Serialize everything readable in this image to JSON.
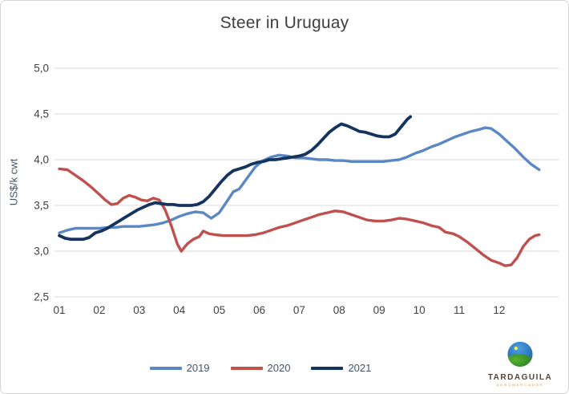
{
  "title": "Steer in Uruguay",
  "y_axis": {
    "label": "US$/k cwt",
    "ticks": [
      {
        "label": "5,0",
        "value": 5.0
      },
      {
        "label": "4,5",
        "value": 4.5
      },
      {
        "label": "4,0",
        "value": 4.0
      },
      {
        "label": "3,5",
        "value": 3.5
      },
      {
        "label": "3,0",
        "value": 3.0
      },
      {
        "label": "2,5",
        "value": 2.5
      }
    ]
  },
  "x_axis": {
    "ticks": [
      "01",
      "02",
      "03",
      "04",
      "05",
      "06",
      "07",
      "08",
      "09",
      "10",
      "11",
      "12"
    ]
  },
  "colors": {
    "grid": "#d9d9d9",
    "tick_text": "#404040",
    "title_text": "#3f3f3f",
    "series_2019": "#5b87c5",
    "series_2020": "#c0504d",
    "series_2021": "#15335f"
  },
  "legend": [
    {
      "label": "2019",
      "color": "#5b87c5"
    },
    {
      "label": "2020",
      "color": "#c0504d"
    },
    {
      "label": "2021",
      "color": "#15335f"
    }
  ],
  "logo": {
    "name": "TARDAGUILA",
    "subtext": "AGROMERCADOS"
  },
  "chart_data": {
    "type": "line",
    "title": "Steer in Uruguay",
    "xlabel": "",
    "ylabel": "US$/k cwt",
    "ylim": [
      2.5,
      5.0
    ],
    "xlim_months": [
      1,
      13
    ],
    "grid": "horizontal",
    "legend_position": "bottom",
    "x_unit": "month (01-12), weekly resolution points",
    "series": [
      {
        "name": "2019",
        "color": "#5b87c5",
        "points": [
          [
            1.0,
            3.2
          ],
          [
            1.2,
            3.23
          ],
          [
            1.4,
            3.25
          ],
          [
            1.6,
            3.25
          ],
          [
            1.8,
            3.25
          ],
          [
            2.0,
            3.25
          ],
          [
            2.2,
            3.26
          ],
          [
            2.4,
            3.26
          ],
          [
            2.6,
            3.27
          ],
          [
            2.8,
            3.27
          ],
          [
            3.0,
            3.27
          ],
          [
            3.2,
            3.28
          ],
          [
            3.4,
            3.29
          ],
          [
            3.6,
            3.31
          ],
          [
            3.8,
            3.34
          ],
          [
            4.0,
            3.38
          ],
          [
            4.2,
            3.41
          ],
          [
            4.4,
            3.43
          ],
          [
            4.6,
            3.42
          ],
          [
            4.8,
            3.36
          ],
          [
            5.0,
            3.42
          ],
          [
            5.2,
            3.55
          ],
          [
            5.35,
            3.65
          ],
          [
            5.5,
            3.68
          ],
          [
            5.7,
            3.8
          ],
          [
            5.9,
            3.92
          ],
          [
            6.1,
            3.99
          ],
          [
            6.3,
            4.03
          ],
          [
            6.5,
            4.05
          ],
          [
            6.7,
            4.04
          ],
          [
            6.9,
            4.02
          ],
          [
            7.1,
            4.02
          ],
          [
            7.3,
            4.01
          ],
          [
            7.5,
            4.0
          ],
          [
            7.7,
            4.0
          ],
          [
            7.9,
            3.99
          ],
          [
            8.1,
            3.99
          ],
          [
            8.3,
            3.98
          ],
          [
            8.5,
            3.98
          ],
          [
            8.7,
            3.98
          ],
          [
            8.9,
            3.98
          ],
          [
            9.1,
            3.98
          ],
          [
            9.3,
            3.99
          ],
          [
            9.5,
            4.0
          ],
          [
            9.7,
            4.03
          ],
          [
            9.9,
            4.07
          ],
          [
            10.1,
            4.1
          ],
          [
            10.3,
            4.14
          ],
          [
            10.5,
            4.17
          ],
          [
            10.7,
            4.21
          ],
          [
            10.9,
            4.25
          ],
          [
            11.1,
            4.28
          ],
          [
            11.3,
            4.31
          ],
          [
            11.5,
            4.33
          ],
          [
            11.65,
            4.35
          ],
          [
            11.8,
            4.34
          ],
          [
            12.0,
            4.28
          ],
          [
            12.2,
            4.2
          ],
          [
            12.4,
            4.12
          ],
          [
            12.6,
            4.03
          ],
          [
            12.8,
            3.95
          ],
          [
            13.0,
            3.89
          ]
        ]
      },
      {
        "name": "2020",
        "color": "#c0504d",
        "points": [
          [
            1.0,
            3.9
          ],
          [
            1.2,
            3.89
          ],
          [
            1.4,
            3.83
          ],
          [
            1.6,
            3.77
          ],
          [
            1.8,
            3.7
          ],
          [
            2.0,
            3.62
          ],
          [
            2.15,
            3.56
          ],
          [
            2.3,
            3.51
          ],
          [
            2.45,
            3.52
          ],
          [
            2.6,
            3.58
          ],
          [
            2.75,
            3.61
          ],
          [
            2.9,
            3.59
          ],
          [
            3.05,
            3.56
          ],
          [
            3.2,
            3.55
          ],
          [
            3.35,
            3.58
          ],
          [
            3.5,
            3.56
          ],
          [
            3.65,
            3.45
          ],
          [
            3.8,
            3.28
          ],
          [
            3.95,
            3.08
          ],
          [
            4.05,
            3.0
          ],
          [
            4.2,
            3.08
          ],
          [
            4.35,
            3.13
          ],
          [
            4.5,
            3.16
          ],
          [
            4.6,
            3.22
          ],
          [
            4.75,
            3.19
          ],
          [
            4.9,
            3.18
          ],
          [
            5.1,
            3.17
          ],
          [
            5.3,
            3.17
          ],
          [
            5.5,
            3.17
          ],
          [
            5.7,
            3.17
          ],
          [
            5.9,
            3.18
          ],
          [
            6.1,
            3.2
          ],
          [
            6.3,
            3.23
          ],
          [
            6.5,
            3.26
          ],
          [
            6.7,
            3.28
          ],
          [
            6.9,
            3.31
          ],
          [
            7.1,
            3.34
          ],
          [
            7.3,
            3.37
          ],
          [
            7.5,
            3.4
          ],
          [
            7.7,
            3.42
          ],
          [
            7.9,
            3.44
          ],
          [
            8.1,
            3.43
          ],
          [
            8.3,
            3.4
          ],
          [
            8.5,
            3.37
          ],
          [
            8.7,
            3.34
          ],
          [
            8.9,
            3.33
          ],
          [
            9.1,
            3.33
          ],
          [
            9.3,
            3.34
          ],
          [
            9.5,
            3.36
          ],
          [
            9.7,
            3.35
          ],
          [
            9.9,
            3.33
          ],
          [
            10.1,
            3.31
          ],
          [
            10.3,
            3.28
          ],
          [
            10.5,
            3.26
          ],
          [
            10.65,
            3.21
          ],
          [
            10.85,
            3.19
          ],
          [
            11.0,
            3.16
          ],
          [
            11.2,
            3.1
          ],
          [
            11.4,
            3.03
          ],
          [
            11.6,
            2.96
          ],
          [
            11.8,
            2.9
          ],
          [
            12.0,
            2.87
          ],
          [
            12.15,
            2.84
          ],
          [
            12.3,
            2.85
          ],
          [
            12.45,
            2.93
          ],
          [
            12.6,
            3.05
          ],
          [
            12.75,
            3.13
          ],
          [
            12.9,
            3.17
          ],
          [
            13.0,
            3.18
          ]
        ]
      },
      {
        "name": "2021",
        "color": "#15335f",
        "points": [
          [
            1.0,
            3.17
          ],
          [
            1.15,
            3.14
          ],
          [
            1.3,
            3.13
          ],
          [
            1.45,
            3.13
          ],
          [
            1.6,
            3.13
          ],
          [
            1.75,
            3.15
          ],
          [
            1.9,
            3.2
          ],
          [
            2.05,
            3.22
          ],
          [
            2.2,
            3.25
          ],
          [
            2.35,
            3.29
          ],
          [
            2.5,
            3.33
          ],
          [
            2.65,
            3.37
          ],
          [
            2.8,
            3.41
          ],
          [
            2.95,
            3.45
          ],
          [
            3.1,
            3.48
          ],
          [
            3.25,
            3.51
          ],
          [
            3.4,
            3.53
          ],
          [
            3.55,
            3.52
          ],
          [
            3.7,
            3.51
          ],
          [
            3.85,
            3.51
          ],
          [
            4.0,
            3.5
          ],
          [
            4.15,
            3.5
          ],
          [
            4.3,
            3.5
          ],
          [
            4.45,
            3.51
          ],
          [
            4.6,
            3.54
          ],
          [
            4.75,
            3.6
          ],
          [
            4.9,
            3.68
          ],
          [
            5.05,
            3.76
          ],
          [
            5.2,
            3.83
          ],
          [
            5.35,
            3.88
          ],
          [
            5.5,
            3.9
          ],
          [
            5.65,
            3.92
          ],
          [
            5.8,
            3.95
          ],
          [
            5.95,
            3.97
          ],
          [
            6.1,
            3.98
          ],
          [
            6.25,
            4.0
          ],
          [
            6.4,
            4.0
          ],
          [
            6.55,
            4.01
          ],
          [
            6.7,
            4.02
          ],
          [
            6.85,
            4.03
          ],
          [
            7.0,
            4.04
          ],
          [
            7.15,
            4.06
          ],
          [
            7.3,
            4.1
          ],
          [
            7.45,
            4.16
          ],
          [
            7.6,
            4.23
          ],
          [
            7.75,
            4.3
          ],
          [
            7.9,
            4.35
          ],
          [
            8.05,
            4.39
          ],
          [
            8.2,
            4.37
          ],
          [
            8.35,
            4.34
          ],
          [
            8.5,
            4.31
          ],
          [
            8.65,
            4.3
          ],
          [
            8.8,
            4.28
          ],
          [
            8.95,
            4.26
          ],
          [
            9.1,
            4.25
          ],
          [
            9.25,
            4.25
          ],
          [
            9.4,
            4.28
          ],
          [
            9.55,
            4.36
          ],
          [
            9.7,
            4.44
          ],
          [
            9.78,
            4.47
          ]
        ]
      }
    ]
  }
}
